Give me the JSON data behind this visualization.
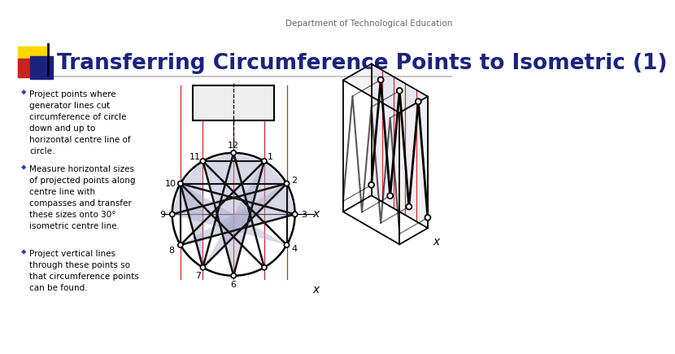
{
  "title": "Transferring Circumference Points to Isometric (1)",
  "subtitle": "Department of Technological Education",
  "bg_color": "#ffffff",
  "title_color": "#1a237e",
  "subtitle_color": "#666666",
  "bullet_color": "#2244aa",
  "bullet_points": [
    "Project points where\ngenerator lines cut\ncircumference of circle\ndown and up to\nhorizontal centre line of\ncircle.",
    "Measure horizontal sizes\nof projected points along\ncentre line with\ncompasses and transfer\nthese sizes onto 30°\nisometric centre line.",
    "Project vertical lines\nthrough these points so\nthat circumference points\ncan be found."
  ],
  "logo_yellow": "#FFD700",
  "logo_red": "#CC2222",
  "logo_blue": "#1a237e",
  "red_line_color": "#cc0000",
  "diagram_line_color": "#111111",
  "generator_fill": "#aaaacc"
}
